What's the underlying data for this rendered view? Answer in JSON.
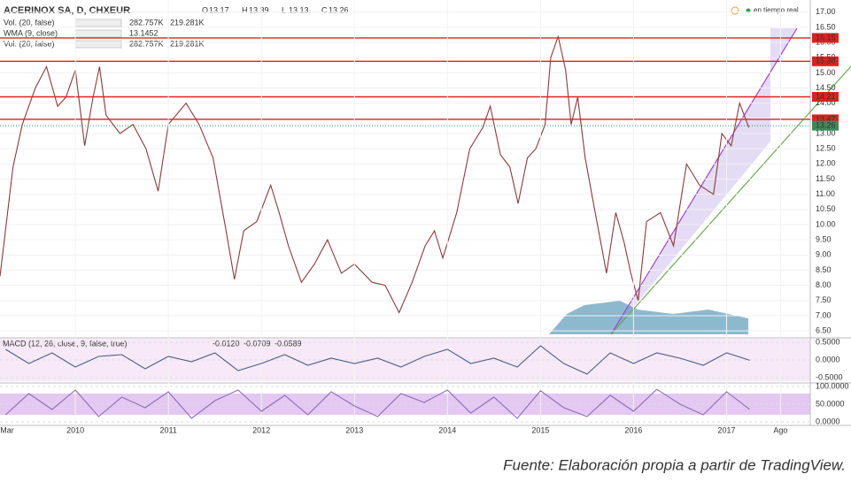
{
  "header": {
    "symbol": "ACERINOX SA, D, CHXEUR",
    "ohlc": [
      {
        "label": "O",
        "value": "13.17"
      },
      {
        "label": "H",
        "value": "13.39"
      },
      {
        "label": "L",
        "value": "13.13"
      },
      {
        "label": "C",
        "value": "13.26"
      }
    ],
    "indicators": [
      {
        "name": "Vol. (20, false)",
        "values": [
          "282.757K",
          "219.281K"
        ]
      },
      {
        "name": "WMA (9, close)",
        "values": [
          "13.1452"
        ]
      },
      {
        "name": "Vol. (20, false)",
        "values": [
          "282.757K",
          "219.281K"
        ]
      }
    ],
    "status": "en tiempo real"
  },
  "chart_data": [
    {
      "type": "line",
      "color": "#8b3a3a",
      "x": [
        2009.19,
        2009.33,
        2009.43,
        2009.57,
        2009.69,
        2009.81,
        2009.9,
        2010.0,
        2010.1,
        2010.19,
        2010.26,
        2010.33,
        2010.48,
        2010.62,
        2010.76,
        2010.89,
        2011.0,
        2011.19,
        2011.33,
        2011.48,
        2011.62,
        2011.71,
        2011.81,
        2011.95,
        2012.1,
        2012.19,
        2012.29,
        2012.43,
        2012.57,
        2012.71,
        2012.86,
        2013.0,
        2013.19,
        2013.33,
        2013.48,
        2013.62,
        2013.76,
        2013.86,
        2013.95,
        2014.1,
        2014.24,
        2014.38,
        2014.46,
        2014.57,
        2014.67,
        2014.76,
        2014.86,
        2014.95,
        2015.05,
        2015.11,
        2015.19,
        2015.27,
        2015.33,
        2015.4,
        2015.48,
        2015.57,
        2015.71,
        2015.81,
        2015.9,
        2015.97,
        2016.05,
        2016.14,
        2016.29,
        2016.43,
        2016.57,
        2016.71,
        2016.86,
        2016.95,
        2017.05,
        2017.14,
        2017.24
      ],
      "values": [
        8.3,
        11.9,
        13.3,
        14.5,
        15.2,
        13.9,
        14.2,
        15.1,
        12.6,
        14.2,
        15.2,
        13.6,
        13.0,
        13.3,
        12.5,
        11.1,
        13.3,
        14.0,
        13.3,
        12.2,
        9.8,
        8.2,
        9.8,
        10.1,
        11.3,
        10.4,
        9.3,
        8.1,
        8.7,
        9.5,
        8.4,
        8.7,
        8.1,
        8.0,
        7.1,
        8.1,
        9.3,
        9.8,
        8.9,
        10.4,
        12.5,
        13.2,
        13.9,
        12.3,
        11.9,
        10.7,
        12.2,
        12.5,
        13.3,
        15.5,
        16.2,
        15.1,
        13.3,
        14.2,
        12.2,
        10.7,
        8.4,
        10.4,
        9.4,
        8.4,
        7.5,
        10.1,
        10.4,
        9.3,
        12.0,
        11.3,
        11.0,
        13.0,
        12.6,
        14.0,
        13.2
      ],
      "xlim": [
        2009.19,
        2017.9
      ],
      "xticks": [
        {
          "value": 2009.17,
          "label": "Mar"
        },
        2010,
        2011,
        2012,
        2013,
        2014,
        2015,
        2016,
        2017,
        {
          "value": 2017.58,
          "label": "Ago"
        }
      ],
      "ylim": [
        6.3,
        17.4
      ],
      "yticks": [
        {
          "value": 17,
          "label": "17.00"
        },
        {
          "value": 16.5,
          "label": "16.50"
        },
        {
          "value": 16,
          "label": "16.00"
        },
        {
          "value": 15.5,
          "label": "15.50"
        },
        {
          "value": 15,
          "label": "15.00"
        },
        {
          "value": 14.5,
          "label": "14.50"
        },
        {
          "value": 14,
          "label": "14.00"
        },
        {
          "value": 13.5,
          "label": "13.50"
        },
        {
          "value": 13,
          "label": "13.00"
        },
        {
          "value": 12.5,
          "label": "12.50"
        },
        {
          "value": 12,
          "label": "12.00"
        },
        {
          "value": 11.5,
          "label": "11.50"
        },
        {
          "value": 11,
          "label": "11.00"
        },
        {
          "value": 10.5,
          "label": "10.50"
        },
        {
          "value": 10,
          "label": "10.00"
        },
        {
          "value": 9.5,
          "label": "9.50"
        },
        {
          "value": 9,
          "label": "9.00"
        },
        {
          "value": 8.5,
          "label": "8.50"
        },
        {
          "value": 8,
          "label": "8.00"
        },
        {
          "value": 7.5,
          "label": "7.50"
        },
        {
          "value": 7,
          "label": "7.00"
        },
        {
          "value": 6.5,
          "label": "6.50"
        }
      ],
      "grid": true,
      "levels": [
        {
          "value": 16.15,
          "color": "#e02020"
        },
        {
          "value": 15.38,
          "color": "#e02020"
        },
        {
          "value": 14.21,
          "color": "#e02020"
        },
        {
          "value": 13.47,
          "color": "#e02020"
        }
      ],
      "last_price": {
        "value": 13.26,
        "color": "#3c8a5a"
      }
    },
    {
      "type": "line",
      "title": "MACD (12, 26, close, 9, false, true)",
      "readouts": [
        "-0.0120",
        "-0.0709",
        "-0.0589"
      ],
      "color": "#4a5e8a",
      "x": [
        2009.25,
        2009.5,
        2009.75,
        2010,
        2010.25,
        2010.5,
        2010.75,
        2011,
        2011.25,
        2011.5,
        2011.75,
        2012,
        2012.25,
        2012.5,
        2012.75,
        2013,
        2013.25,
        2013.5,
        2013.75,
        2014,
        2014.25,
        2014.5,
        2014.75,
        2015,
        2015.25,
        2015.5,
        2015.75,
        2016,
        2016.25,
        2016.5,
        2016.75,
        2017,
        2017.25
      ],
      "values": [
        0.3,
        -0.1,
        0.2,
        -0.2,
        0.1,
        0.15,
        -0.25,
        0.1,
        -0.05,
        0.2,
        -0.3,
        -0.1,
        0.15,
        -0.15,
        0.05,
        -0.1,
        0.05,
        -0.2,
        0.1,
        0.3,
        -0.1,
        0.05,
        -0.2,
        0.4,
        -0.1,
        -0.4,
        0.2,
        -0.1,
        0.2,
        0.05,
        -0.15,
        0.2,
        -0.01
      ],
      "ylim": [
        -0.6,
        0.6
      ],
      "yticks": [
        {
          "value": 0.5,
          "label": "0.5000"
        },
        {
          "value": 0,
          "label": "0.0000"
        },
        {
          "value": -0.5,
          "label": "-0.5000"
        }
      ]
    },
    {
      "type": "line",
      "color": "#8e6bb5",
      "x": [
        2009.25,
        2009.5,
        2009.75,
        2010,
        2010.25,
        2010.5,
        2010.75,
        2011,
        2011.25,
        2011.5,
        2011.75,
        2012,
        2012.25,
        2012.5,
        2012.75,
        2013,
        2013.25,
        2013.5,
        2013.75,
        2014,
        2014.25,
        2014.5,
        2014.75,
        2015,
        2015.25,
        2015.5,
        2015.75,
        2016,
        2016.25,
        2016.5,
        2016.75,
        2017,
        2017.25
      ],
      "values": [
        20,
        80,
        35,
        90,
        15,
        70,
        40,
        85,
        10,
        60,
        90,
        30,
        75,
        20,
        85,
        45,
        15,
        80,
        55,
        90,
        25,
        70,
        10,
        88,
        40,
        15,
        75,
        30,
        92,
        50,
        20,
        85,
        35
      ],
      "ylim": [
        -5,
        105
      ],
      "yticks": [
        {
          "value": 100,
          "label": "100.0000"
        },
        {
          "value": 50,
          "label": "50.0000"
        },
        {
          "value": 0,
          "label": "0.0000"
        }
      ]
    }
  ],
  "caption": "Fuente: Elaboración propia a partir de TradingView."
}
